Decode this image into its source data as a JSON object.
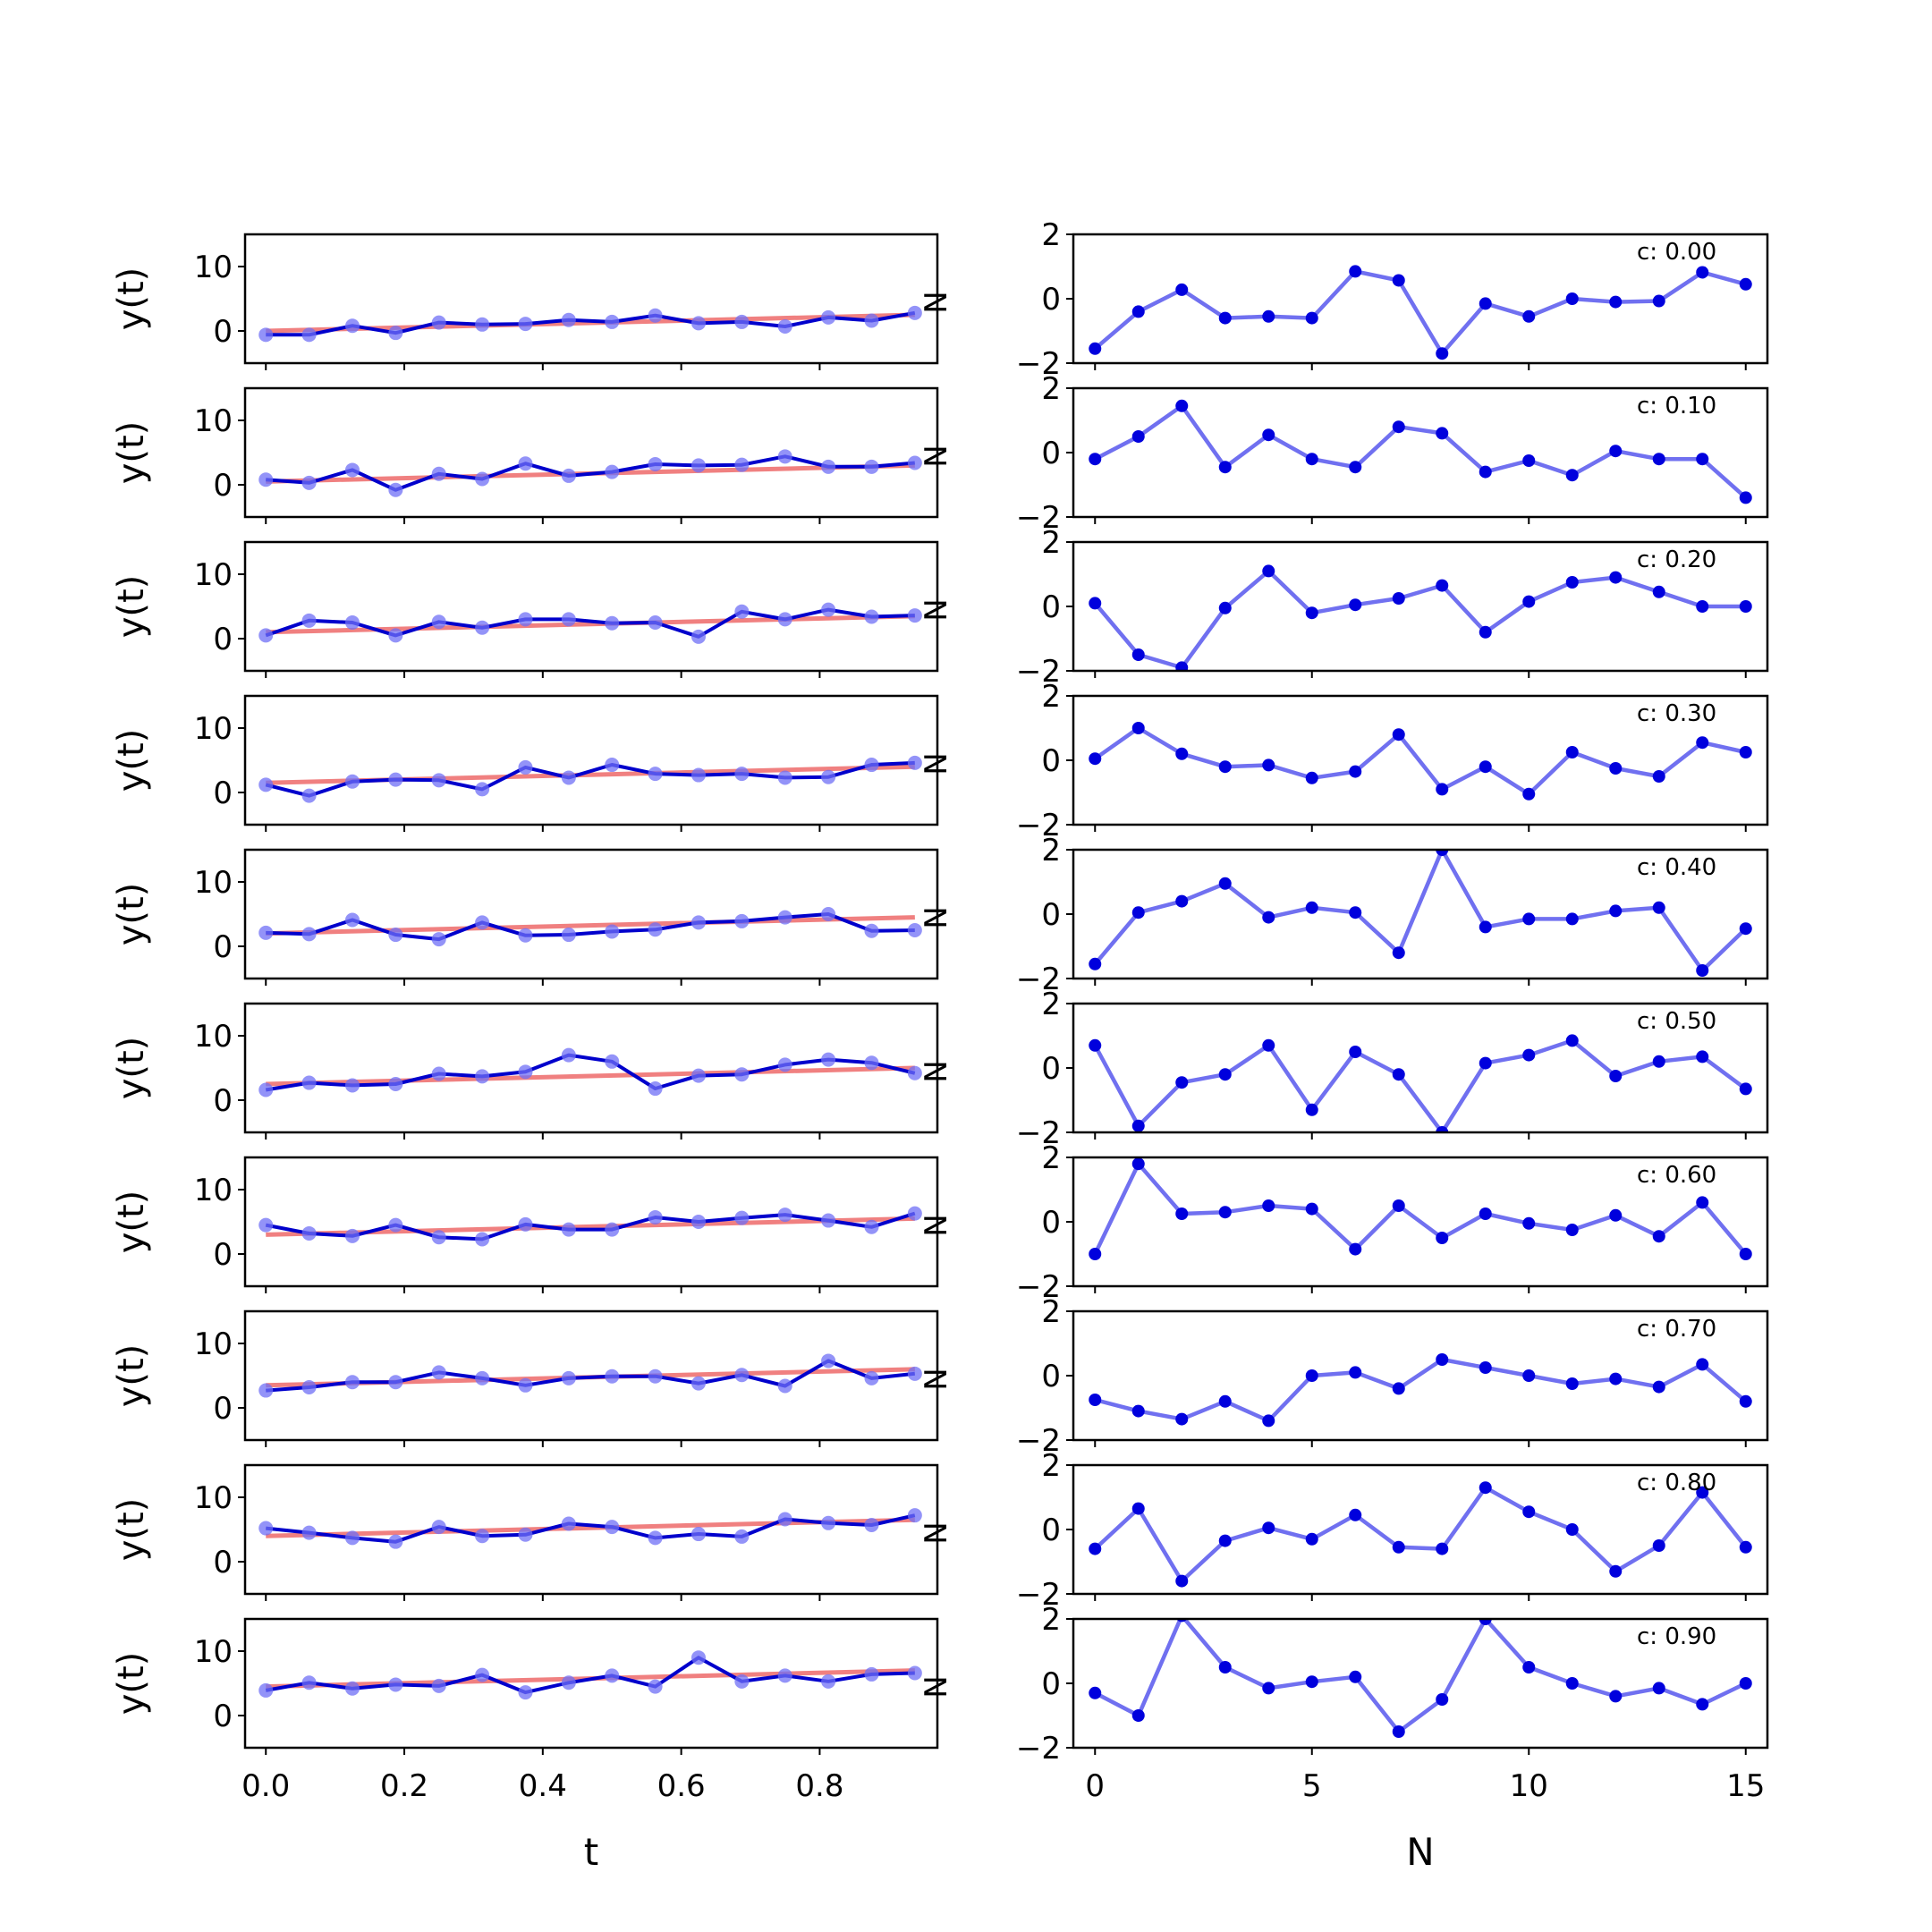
{
  "figure": {
    "left_xlabel": "t",
    "right_xlabel": "N",
    "left_ylabel": "y(t)",
    "right_ylabel": "N",
    "annotation_prefix": "c: "
  },
  "chart_data": [
    {
      "type": "line",
      "panel": "left-column",
      "x": [
        0.0,
        0.0625,
        0.125,
        0.1875,
        0.25,
        0.3125,
        0.375,
        0.4375,
        0.5,
        0.5625,
        0.625,
        0.6875,
        0.75,
        0.8125,
        0.875,
        0.9375
      ],
      "xlim": [
        -0.03,
        0.97
      ],
      "ylim": [
        -5,
        15
      ],
      "xticks": [
        0.0,
        0.2,
        0.4,
        0.6,
        0.8
      ],
      "xtick_labels": [
        "0.0",
        "0.2",
        "0.4",
        "0.6",
        "0.8"
      ],
      "yticks": [
        0,
        10
      ],
      "ytick_labels": [
        "0",
        "10"
      ],
      "grid": false,
      "colors": {
        "observed": "#0000cc",
        "fit": "#f08080",
        "points": "#6f6ff5"
      },
      "rows": [
        {
          "c": "0.00",
          "y": [
            -0.6,
            -0.6,
            0.8,
            -0.3,
            1.3,
            1.0,
            1.1,
            1.7,
            1.4,
            2.4,
            1.2,
            1.4,
            0.7,
            2.1,
            1.6,
            2.8
          ],
          "fit": [
            0.0,
            2.5
          ]
        },
        {
          "c": "0.10",
          "y": [
            0.8,
            0.3,
            2.3,
            -0.8,
            1.7,
            0.9,
            3.3,
            1.4,
            2.0,
            3.2,
            3.0,
            3.1,
            4.4,
            2.8,
            2.8,
            3.4
          ],
          "fit": [
            0.5,
            3.0
          ]
        },
        {
          "c": "0.20",
          "y": [
            0.5,
            2.8,
            2.5,
            0.5,
            2.6,
            1.7,
            3.0,
            3.0,
            2.4,
            2.5,
            0.3,
            4.2,
            3.0,
            4.5,
            3.4,
            3.6
          ],
          "fit": [
            1.0,
            3.5
          ]
        },
        {
          "c": "0.30",
          "y": [
            1.2,
            -0.5,
            1.7,
            2.0,
            1.9,
            0.5,
            3.9,
            2.3,
            4.3,
            2.9,
            2.7,
            2.9,
            2.3,
            2.4,
            4.3,
            4.6
          ],
          "fit": [
            1.5,
            4.0
          ]
        },
        {
          "c": "0.40",
          "y": [
            2.1,
            1.9,
            4.1,
            1.8,
            1.1,
            3.7,
            1.7,
            1.8,
            2.3,
            2.6,
            3.7,
            3.9,
            4.5,
            5.0,
            2.4,
            2.5
          ],
          "fit": [
            2.0,
            4.5
          ]
        },
        {
          "c": "0.50",
          "y": [
            1.6,
            2.7,
            2.3,
            2.5,
            4.1,
            3.7,
            4.4,
            7.0,
            6.0,
            1.8,
            3.8,
            4.0,
            5.5,
            6.3,
            5.8,
            4.2
          ],
          "fit": [
            2.5,
            5.0
          ]
        },
        {
          "c": "0.60",
          "y": [
            4.5,
            3.2,
            2.8,
            4.5,
            2.6,
            2.3,
            4.6,
            3.8,
            3.8,
            5.7,
            5.0,
            5.6,
            6.1,
            5.2,
            4.2,
            6.3
          ],
          "fit": [
            3.0,
            5.5
          ]
        },
        {
          "c": "0.70",
          "y": [
            2.7,
            3.2,
            4.0,
            4.0,
            5.5,
            4.6,
            3.5,
            4.6,
            4.9,
            4.9,
            3.8,
            5.1,
            3.4,
            7.3,
            4.6,
            5.3
          ],
          "fit": [
            3.5,
            6.0
          ]
        },
        {
          "c": "0.80",
          "y": [
            5.2,
            4.5,
            3.7,
            3.1,
            5.4,
            4.0,
            4.2,
            5.9,
            5.4,
            3.7,
            4.3,
            3.9,
            6.6,
            6.0,
            5.7,
            7.2
          ],
          "fit": [
            4.0,
            6.5
          ]
        },
        {
          "c": "0.90",
          "y": [
            3.9,
            5.1,
            4.2,
            4.8,
            4.6,
            6.3,
            3.6,
            5.1,
            6.2,
            4.5,
            9.0,
            5.3,
            6.2,
            5.3,
            6.4,
            6.6
          ],
          "fit": [
            4.5,
            7.0
          ]
        }
      ]
    },
    {
      "type": "line",
      "panel": "right-column",
      "x": [
        0,
        1,
        2,
        3,
        4,
        5,
        6,
        7,
        8,
        9,
        10,
        11,
        12,
        13,
        14,
        15
      ],
      "xlim": [
        -0.5,
        15.5
      ],
      "ylim": [
        -2,
        2
      ],
      "xticks": [
        0,
        5,
        10,
        15
      ],
      "xtick_labels": [
        "0",
        "5",
        "10",
        "15"
      ],
      "yticks": [
        -2,
        0,
        2
      ],
      "ytick_labels": [
        "−2",
        "0",
        "2"
      ],
      "grid": false,
      "colors": {
        "line": "#7070f0",
        "points": "#0000dd"
      },
      "rows": [
        {
          "c": "0.00",
          "y": [
            -1.55,
            -0.4,
            0.28,
            -0.6,
            -0.55,
            -0.6,
            0.85,
            0.57,
            -1.7,
            -0.15,
            -0.55,
            0.0,
            -0.1,
            -0.07,
            0.82,
            0.45
          ]
        },
        {
          "c": "0.10",
          "y": [
            -0.2,
            0.5,
            1.45,
            -0.45,
            0.55,
            -0.2,
            -0.45,
            0.8,
            0.6,
            -0.6,
            -0.25,
            -0.7,
            0.05,
            -0.2,
            -0.2,
            -1.4
          ]
        },
        {
          "c": "0.20",
          "y": [
            0.1,
            -1.5,
            -1.9,
            -0.05,
            1.1,
            -0.2,
            0.05,
            0.25,
            0.65,
            -0.8,
            0.15,
            0.75,
            0.9,
            0.45,
            0.0,
            0.0
          ]
        },
        {
          "c": "0.30",
          "y": [
            0.05,
            1.0,
            0.2,
            -0.2,
            -0.15,
            -0.55,
            -0.35,
            0.8,
            -0.9,
            -0.2,
            -1.05,
            0.25,
            -0.25,
            -0.5,
            0.55,
            0.25
          ]
        },
        {
          "c": "0.40",
          "y": [
            -1.55,
            0.05,
            0.4,
            0.95,
            -0.1,
            0.2,
            0.05,
            -1.2,
            2.0,
            -0.4,
            -0.15,
            -0.15,
            0.1,
            0.2,
            -1.75,
            -0.45
          ]
        },
        {
          "c": "0.50",
          "y": [
            0.7,
            -1.8,
            -0.45,
            -0.2,
            0.7,
            -1.3,
            0.5,
            -0.2,
            -2.0,
            0.15,
            0.4,
            0.85,
            -0.25,
            0.2,
            0.35,
            -0.65
          ]
        },
        {
          "c": "0.60",
          "y": [
            -1.0,
            1.8,
            0.25,
            0.3,
            0.5,
            0.4,
            -0.85,
            0.5,
            -0.5,
            0.25,
            -0.05,
            -0.25,
            0.2,
            -0.45,
            0.6,
            -1.0
          ]
        },
        {
          "c": "0.70",
          "y": [
            -0.75,
            -1.1,
            -1.35,
            -0.8,
            -1.4,
            0.0,
            0.1,
            -0.4,
            0.5,
            0.25,
            0.0,
            -0.25,
            -0.1,
            -0.35,
            0.35,
            -0.8
          ]
        },
        {
          "c": "0.80",
          "y": [
            -0.6,
            0.65,
            -1.6,
            -0.35,
            0.05,
            -0.3,
            0.45,
            -0.55,
            -0.6,
            1.3,
            0.55,
            0.0,
            -1.3,
            -0.5,
            1.15,
            -0.55
          ]
        },
        {
          "c": "0.90",
          "y": [
            -0.3,
            -1.0,
            2.1,
            0.5,
            -0.15,
            0.05,
            0.2,
            -1.5,
            -0.5,
            2.0,
            0.5,
            0.0,
            -0.4,
            -0.15,
            -0.65,
            0.0
          ]
        }
      ]
    }
  ]
}
